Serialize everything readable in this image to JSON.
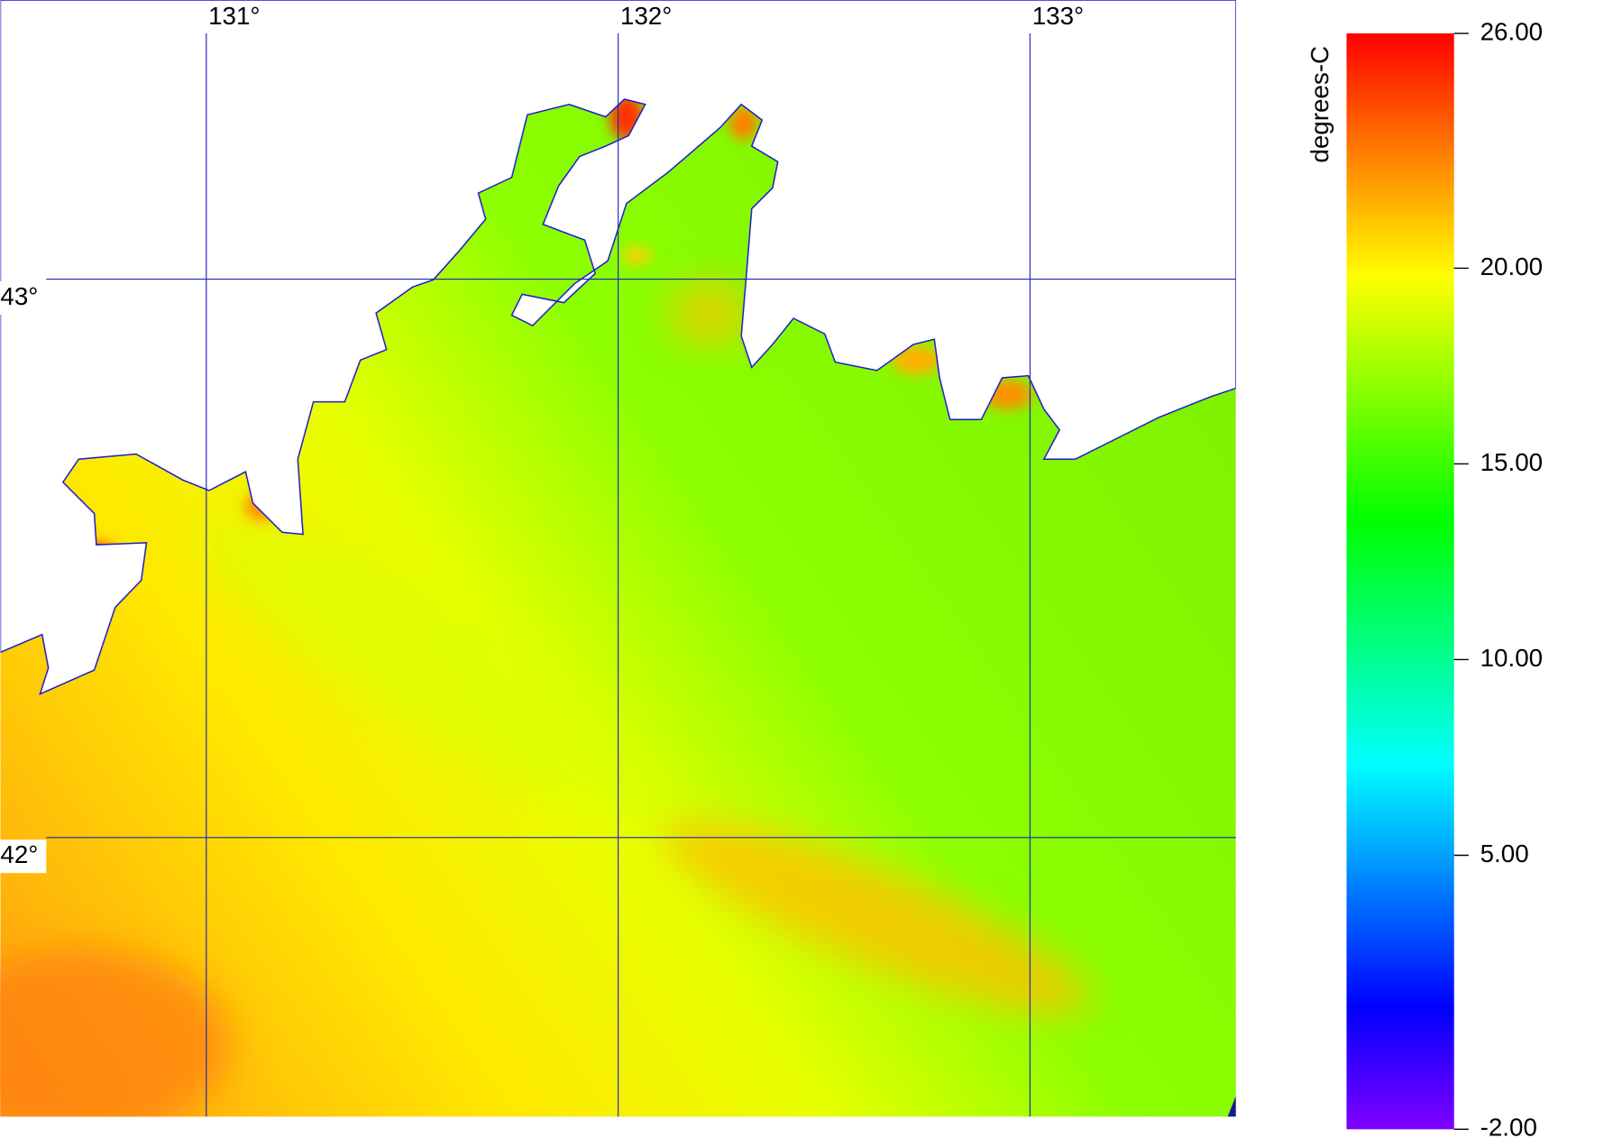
{
  "map": {
    "lonlim": [
      130.5,
      133.5
    ],
    "latlim": [
      41.5,
      43.5
    ],
    "lonticks": [
      {
        "value": 131,
        "label": "131°"
      },
      {
        "value": 132,
        "label": "132°"
      },
      {
        "value": 133,
        "label": "133°"
      }
    ],
    "latticks": [
      {
        "value": 43,
        "label": "43°"
      },
      {
        "value": 42,
        "label": "42°"
      }
    ]
  },
  "colorbar": {
    "label": "degrees-C",
    "lim": [
      -2,
      26
    ],
    "ticks": [
      {
        "value": 26,
        "label": "26.00"
      },
      {
        "value": 20,
        "label": "20.00"
      },
      {
        "value": 15,
        "label": "15.00"
      },
      {
        "value": 10,
        "label": "10.00"
      },
      {
        "value": 5,
        "label": "5.00"
      },
      {
        "value": -2,
        "label": "-2.00"
      }
    ],
    "colors": [
      "#ff0000",
      "#ff8000",
      "#ffff00",
      "#80ff00",
      "#00ff00",
      "#00ff80",
      "#00ffff",
      "#0080ff",
      "#0000ff",
      "#8000ff"
    ]
  }
}
